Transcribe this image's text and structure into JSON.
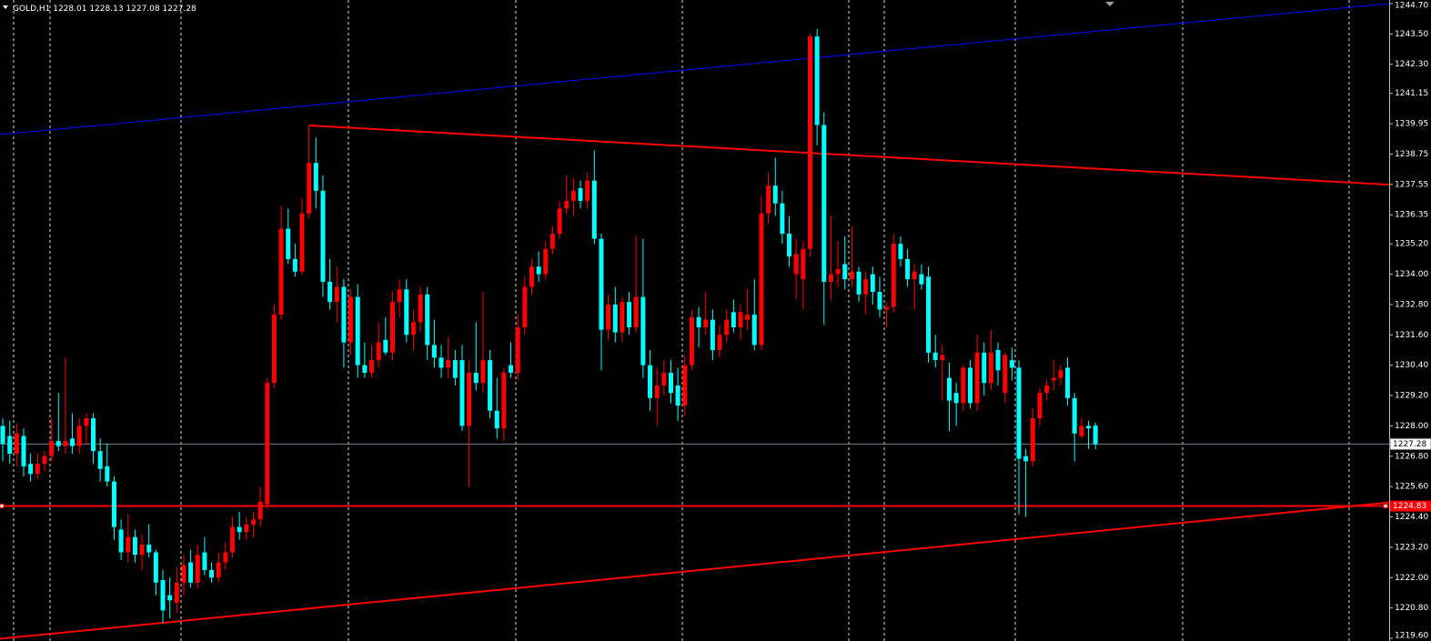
{
  "chart_data": {
    "type": "candlestick",
    "title": "GOLD,H1",
    "quote": {
      "open": 1228.01,
      "high": 1228.13,
      "low": 1227.08,
      "close": 1227.28
    },
    "up_color": "#ff0000",
    "down_color": "#00ffff",
    "background": "#000000",
    "xlim": [
      -0.4,
      199.2
    ],
    "ylim": [
      1219.6,
      1244.7
    ],
    "yticks": [
      {
        "value": 1244.7,
        "label": "1244.70"
      },
      {
        "value": 1243.5,
        "label": "1243.50"
      },
      {
        "value": 1242.3,
        "label": "1242.30"
      },
      1241.15,
      1239.95,
      1238.75,
      1237.55,
      1236.35,
      {
        "value": 1235.2,
        "label": "1235.20"
      },
      {
        "value": 1234,
        "label": "1234.00"
      },
      {
        "value": 1232.8,
        "label": "1232.80"
      },
      {
        "value": 1231.6,
        "label": "1231.60"
      },
      {
        "value": 1230.4,
        "label": "1230.40"
      },
      {
        "value": 1229.2,
        "label": "1229.20"
      },
      {
        "value": 1228,
        "label": "1228.00"
      },
      {
        "value": 1226.8,
        "label": "1226.80"
      },
      {
        "value": 1225.6,
        "label": "1225.60"
      },
      {
        "value": 1224.4,
        "label": "1224.40"
      },
      {
        "value": 1223.2,
        "label": "1223.20"
      },
      {
        "value": 1222,
        "label": "1222.00"
      },
      {
        "value": 1220.8,
        "label": "1220.80"
      },
      {
        "value": 1219.6,
        "label": "1219.60"
      }
    ],
    "current_price": {
      "value": 1227.28,
      "color": "#708090"
    },
    "level": {
      "value": 1224.83,
      "color": "#ff0000"
    },
    "trendlines": [
      {
        "color": "#0000ff",
        "x": [
          -0.4,
          199.2
        ],
        "y": [
          1239.52,
          1244.7
        ]
      },
      {
        "color": "#ff0000",
        "x": [
          44,
          199.2
        ],
        "y": [
          1239.88,
          1237.54
        ]
      },
      {
        "color": "#ff0000",
        "x": [
          -0.4,
          199.2
        ],
        "y": [
          1219.58,
          1224.97
        ]
      }
    ],
    "open": [
      1228.0,
      1227.6,
      1226.9,
      1227.6,
      1226.5,
      1226.1,
      1226.5,
      1226.8,
      1227.4,
      1227.2,
      1227.5,
      1227.2,
      1228.0,
      1228.3,
      1227.0,
      1226.4,
      1225.8,
      1223.9,
      1223.0,
      1223.6,
      1222.9,
      1223.3,
      1223.0,
      1221.9,
      1221.3,
      1221.0,
      1221.8,
      1222.6,
      1221.8,
      1223.0,
      1222.3,
      1222.0,
      1222.6,
      1223.0,
      1224.0,
      1223.8,
      1224.1,
      1224.3,
      1224.9,
      1229.7,
      1232.4,
      1235.8,
      1234.6,
      1234.1,
      1236.4,
      1238.4,
      1237.3,
      1233.7,
      1232.9,
      1233.5,
      1231.3,
      1233.1,
      1230.4,
      1230.1,
      1230.6,
      1231.4,
      1230.9,
      1232.9,
      1233.4,
      1231.6,
      1232.1,
      1233.2,
      1231.2,
      1230.7,
      1230.3,
      1230.6,
      1230.6,
      1228.0,
      1230.1,
      1229.7,
      1230.6,
      1228.6,
      1227.9,
      1230.4,
      1230.1,
      1231.9,
      1233.5,
      1234.3,
      1234.0,
      1235.0,
      1235.6,
      1236.6,
      1236.9,
      1237.4,
      1236.9,
      1237.7,
      1235.4,
      1231.8,
      1232.8,
      1231.7,
      1232.9,
      1231.9,
      1233.1,
      1230.4,
      1229.1,
      1229.6,
      1230.1,
      1229.6,
      1228.8,
      1230.4,
      1232.3,
      1231.9,
      1232.2,
      1231.0,
      1231.6,
      1232.5,
      1231.9,
      1232.2,
      1232.4,
      1231.2,
      1236.4,
      1237.5,
      1236.8,
      1235.6,
      1234.0,
      1233.8,
      1235.0,
      1243.4,
      1239.9,
      1233.7,
      1234.0,
      1234.4,
      1233.8,
      1234.1,
      1233.2,
      1234.0,
      1233.3,
      1232.6,
      1232.7,
      1235.2,
      1234.6,
      1233.8,
      1234.0,
      1233.9,
      1230.9,
      1230.6,
      1229.9,
      1229.3,
      1228.9,
      1230.3,
      1228.9,
      1230.9,
      1229.7,
      1231.0,
      1229.3,
      1230.6,
      1230.3,
      1226.8,
      1226.6,
      1228.3,
      1229.3,
      1229.8,
      1229.9,
      1230.3,
      1229.1,
      1227.6,
      1228.0,
      1228.01
    ],
    "high": [
      1228.3,
      1228.2,
      1228.1,
      1227.9,
      1226.9,
      1226.9,
      1227.0,
      1228.3,
      1229.3,
      1230.7,
      1228.5,
      1228.3,
      1228.5,
      1228.5,
      1227.5,
      1227.3,
      1226.0,
      1224.3,
      1224.5,
      1223.9,
      1223.7,
      1224.1,
      1223.1,
      1222.3,
      1222.0,
      1222.4,
      1222.9,
      1223.1,
      1223.3,
      1223.6,
      1222.6,
      1223.0,
      1223.4,
      1224.4,
      1224.6,
      1224.4,
      1224.6,
      1225.6,
      1229.9,
      1232.8,
      1236.7,
      1236.6,
      1235.2,
      1237.0,
      1239.9,
      1239.4,
      1237.9,
      1234.6,
      1234.3,
      1233.8,
      1233.4,
      1233.6,
      1231.3,
      1231.2,
      1232.1,
      1232.3,
      1233.3,
      1233.8,
      1233.8,
      1232.6,
      1233.5,
      1233.5,
      1232.2,
      1231.2,
      1231.5,
      1231.0,
      1231.2,
      1230.6,
      1232.1,
      1233.3,
      1231.0,
      1229.9,
      1230.3,
      1231.3,
      1232.4,
      1233.9,
      1234.6,
      1234.9,
      1235.3,
      1235.9,
      1236.9,
      1237.9,
      1237.8,
      1237.7,
      1238.0,
      1238.9,
      1235.6,
      1233.2,
      1233.5,
      1233.1,
      1233.3,
      1235.5,
      1235.4,
      1231.0,
      1230.3,
      1230.6,
      1230.6,
      1230.3,
      1230.8,
      1232.6,
      1232.7,
      1233.3,
      1232.6,
      1232.0,
      1232.6,
      1233.0,
      1232.8,
      1233.4,
      1233.8,
      1237.1,
      1238.0,
      1238.6,
      1237.3,
      1236.3,
      1235.4,
      1235.3,
      1243.5,
      1243.7,
      1240.4,
      1236.3,
      1235.3,
      1235.5,
      1235.9,
      1234.3,
      1234.1,
      1234.3,
      1233.9,
      1232.9,
      1235.6,
      1235.5,
      1235.0,
      1234.4,
      1234.4,
      1234.3,
      1231.6,
      1231.2,
      1230.5,
      1229.7,
      1230.4,
      1230.6,
      1231.6,
      1231.3,
      1231.8,
      1231.3,
      1230.9,
      1231.1,
      1230.6,
      1227.1,
      1228.7,
      1229.5,
      1229.8,
      1230.6,
      1230.4,
      1230.7,
      1229.3,
      1228.3,
      1228.2,
      1228.13
    ],
    "low": [
      1226.6,
      1226.5,
      1226.4,
      1226.0,
      1225.8,
      1225.9,
      1226.2,
      1226.6,
      1227.0,
      1226.9,
      1226.9,
      1226.9,
      1227.3,
      1226.5,
      1225.8,
      1225.6,
      1223.5,
      1222.7,
      1222.6,
      1222.6,
      1222.3,
      1222.8,
      1221.3,
      1220.2,
      1220.4,
      1220.6,
      1221.3,
      1221.6,
      1221.6,
      1222.1,
      1221.8,
      1221.8,
      1222.3,
      1222.8,
      1223.5,
      1223.5,
      1223.6,
      1224.0,
      1224.7,
      1229.5,
      1232.2,
      1234.4,
      1233.9,
      1234.0,
      1236.2,
      1236.6,
      1233.1,
      1232.6,
      1232.1,
      1230.3,
      1230.8,
      1229.9,
      1229.9,
      1229.9,
      1230.3,
      1230.8,
      1230.6,
      1232.3,
      1231.3,
      1231.0,
      1231.7,
      1230.6,
      1230.3,
      1229.9,
      1229.9,
      1229.6,
      1227.8,
      1225.6,
      1229.4,
      1229.3,
      1228.3,
      1227.5,
      1227.4,
      1229.9,
      1229.8,
      1231.6,
      1233.2,
      1233.7,
      1233.8,
      1234.8,
      1235.4,
      1236.4,
      1236.3,
      1236.6,
      1236.6,
      1235.2,
      1230.2,
      1231.4,
      1231.3,
      1231.3,
      1231.6,
      1231.7,
      1229.9,
      1228.6,
      1228.0,
      1229.2,
      1228.9,
      1228.2,
      1228.4,
      1230.2,
      1231.1,
      1231.6,
      1230.6,
      1230.7,
      1231.3,
      1231.7,
      1231.4,
      1231.8,
      1231.0,
      1231.0,
      1236.0,
      1236.3,
      1235.2,
      1234.3,
      1233.0,
      1232.6,
      1234.7,
      1239.1,
      1232.0,
      1233.0,
      1233.5,
      1233.4,
      1233.5,
      1232.9,
      1232.4,
      1232.8,
      1232.3,
      1231.9,
      1232.5,
      1234.3,
      1233.5,
      1232.6,
      1233.4,
      1230.5,
      1230.3,
      1229.0,
      1227.8,
      1228.0,
      1228.6,
      1228.7,
      1228.6,
      1229.2,
      1229.4,
      1229.6,
      1228.9,
      1229.8,
      1224.5,
      1224.4,
      1226.4,
      1228.0,
      1229.0,
      1229.4,
      1229.6,
      1228.8,
      1226.6,
      1227.5,
      1227.1,
      1227.08
    ],
    "close": [
      1227.3,
      1226.9,
      1227.7,
      1226.4,
      1226.1,
      1226.5,
      1226.8,
      1227.4,
      1227.2,
      1227.4,
      1227.2,
      1228.0,
      1228.3,
      1227.0,
      1226.3,
      1225.8,
      1224.0,
      1223.0,
      1223.6,
      1222.9,
      1223.3,
      1223.0,
      1221.8,
      1220.7,
      1221.1,
      1221.8,
      1222.5,
      1221.8,
      1222.9,
      1222.3,
      1222.0,
      1222.6,
      1223.0,
      1224.0,
      1223.8,
      1224.1,
      1224.3,
      1225.0,
      1229.7,
      1232.4,
      1235.8,
      1234.6,
      1234.1,
      1236.4,
      1238.4,
      1237.3,
      1233.7,
      1232.9,
      1233.5,
      1231.3,
      1233.1,
      1230.4,
      1230.1,
      1230.6,
      1231.3,
      1230.9,
      1232.9,
      1233.4,
      1231.6,
      1232.1,
      1233.2,
      1231.2,
      1230.7,
      1230.3,
      1230.6,
      1229.9,
      1228.0,
      1230.1,
      1229.7,
      1230.6,
      1228.6,
      1227.9,
      1230.1,
      1230.1,
      1231.9,
      1233.5,
      1234.3,
      1234.0,
      1235.0,
      1235.6,
      1236.6,
      1236.9,
      1237.3,
      1236.9,
      1237.7,
      1235.4,
      1231.8,
      1232.8,
      1231.7,
      1232.9,
      1231.9,
      1233.1,
      1230.4,
      1229.1,
      1229.6,
      1230.1,
      1229.3,
      1228.8,
      1230.4,
      1232.3,
      1231.9,
      1232.2,
      1231.0,
      1231.6,
      1232.2,
      1231.9,
      1232.5,
      1232.4,
      1231.2,
      1236.4,
      1237.5,
      1236.8,
      1235.6,
      1234.7,
      1234.8,
      1235.0,
      1243.4,
      1239.9,
      1233.7,
      1234.0,
      1234.2,
      1233.8,
      1234.1,
      1233.2,
      1233.8,
      1233.3,
      1232.6,
      1232.7,
      1235.2,
      1234.6,
      1233.8,
      1234.1,
      1233.6,
      1230.9,
      1230.6,
      1230.8,
      1229.0,
      1228.9,
      1230.3,
      1228.9,
      1230.9,
      1229.7,
      1230.9,
      1230.2,
      1230.8,
      1230.3,
      1226.7,
      1226.6,
      1228.3,
      1229.3,
      1229.6,
      1229.9,
      1230.2,
      1229.1,
      1227.7,
      1228.0,
      1227.9,
      1227.28
    ]
  }
}
